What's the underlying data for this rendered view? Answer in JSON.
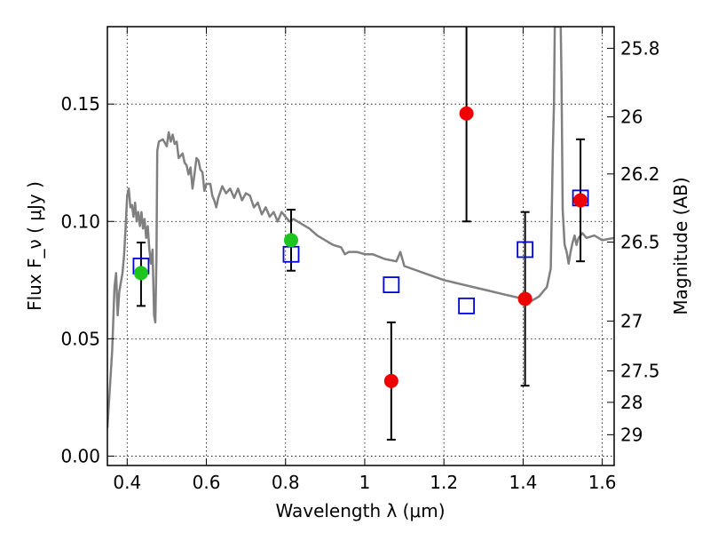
{
  "chart_data": {
    "type": "scatter",
    "xlabel": "Wavelength λ (μm)",
    "ylabel": "Flux F_ν ( μJy )",
    "ylabel_right": "Magnitude (AB)",
    "xlim": [
      0.35,
      1.63
    ],
    "ylim": [
      -0.004,
      0.183
    ],
    "grid": true,
    "x_ticks": [
      0.4,
      0.6,
      0.8,
      1.0,
      1.2,
      1.4,
      1.6
    ],
    "x_tick_labels": [
      "0.4",
      "0.6",
      "0.8",
      "1",
      "1.2",
      "1.4",
      "1.6"
    ],
    "y_ticks": [
      0.0,
      0.05,
      0.1,
      0.15
    ],
    "y_tick_labels": [
      "0.00",
      "0.05",
      "0.10",
      "0.15"
    ],
    "right_ticks": [
      {
        "label": "25.8",
        "value": 25.8
      },
      {
        "label": "26",
        "value": 26.0
      },
      {
        "label": "26.2",
        "value": 26.2
      },
      {
        "label": "26.5",
        "value": 26.5
      },
      {
        "label": "27",
        "value": 27.0
      },
      {
        "label": "27.5",
        "value": 27.5
      },
      {
        "label": "28",
        "value": 28.0
      },
      {
        "label": "29",
        "value": 29.0
      }
    ],
    "series": [
      {
        "kind": "line",
        "color": "#808080",
        "points": [
          [
            0.35,
            0.012
          ],
          [
            0.362,
            0.045
          ],
          [
            0.368,
            0.072
          ],
          [
            0.372,
            0.078
          ],
          [
            0.376,
            0.06
          ],
          [
            0.38,
            0.07
          ],
          [
            0.384,
            0.074
          ],
          [
            0.388,
            0.078
          ],
          [
            0.392,
            0.085
          ],
          [
            0.396,
            0.097
          ],
          [
            0.4,
            0.111
          ],
          [
            0.404,
            0.114
          ],
          [
            0.408,
            0.106
          ],
          [
            0.412,
            0.107
          ],
          [
            0.416,
            0.102
          ],
          [
            0.42,
            0.108
          ],
          [
            0.424,
            0.1
          ],
          [
            0.428,
            0.104
          ],
          [
            0.432,
            0.098
          ],
          [
            0.436,
            0.104
          ],
          [
            0.44,
            0.097
          ],
          [
            0.444,
            0.101
          ],
          [
            0.448,
            0.093
          ],
          [
            0.452,
            0.098
          ],
          [
            0.456,
            0.088
          ],
          [
            0.46,
            0.082
          ],
          [
            0.464,
            0.088
          ],
          [
            0.468,
            0.06
          ],
          [
            0.471,
            0.057
          ],
          [
            0.474,
            0.085
          ],
          [
            0.476,
            0.13
          ],
          [
            0.48,
            0.134
          ],
          [
            0.49,
            0.135
          ],
          [
            0.5,
            0.132
          ],
          [
            0.505,
            0.138
          ],
          [
            0.51,
            0.134
          ],
          [
            0.515,
            0.137
          ],
          [
            0.52,
            0.133
          ],
          [
            0.525,
            0.134
          ],
          [
            0.53,
            0.127
          ],
          [
            0.54,
            0.129
          ],
          [
            0.545,
            0.125
          ],
          [
            0.55,
            0.124
          ],
          [
            0.555,
            0.12
          ],
          [
            0.56,
            0.123
          ],
          [
            0.565,
            0.114
          ],
          [
            0.57,
            0.12
          ],
          [
            0.575,
            0.127
          ],
          [
            0.58,
            0.126
          ],
          [
            0.585,
            0.122
          ],
          [
            0.59,
            0.121
          ],
          [
            0.595,
            0.113
          ],
          [
            0.6,
            0.116
          ],
          [
            0.61,
            0.116
          ],
          [
            0.615,
            0.111
          ],
          [
            0.62,
            0.109
          ],
          [
            0.625,
            0.106
          ],
          [
            0.63,
            0.11
          ],
          [
            0.64,
            0.115
          ],
          [
            0.65,
            0.112
          ],
          [
            0.66,
            0.114
          ],
          [
            0.67,
            0.11
          ],
          [
            0.68,
            0.114
          ],
          [
            0.69,
            0.109
          ],
          [
            0.7,
            0.112
          ],
          [
            0.71,
            0.111
          ],
          [
            0.72,
            0.106
          ],
          [
            0.73,
            0.108
          ],
          [
            0.74,
            0.103
          ],
          [
            0.75,
            0.106
          ],
          [
            0.76,
            0.102
          ],
          [
            0.77,
            0.104
          ],
          [
            0.78,
            0.1
          ],
          [
            0.79,
            0.104
          ],
          [
            0.8,
            0.102
          ],
          [
            0.81,
            0.1
          ],
          [
            0.82,
            0.101
          ],
          [
            0.84,
            0.099
          ],
          [
            0.86,
            0.097
          ],
          [
            0.88,
            0.094
          ],
          [
            0.9,
            0.092
          ],
          [
            0.92,
            0.09
          ],
          [
            0.94,
            0.089
          ],
          [
            0.95,
            0.086
          ],
          [
            0.96,
            0.087
          ],
          [
            0.98,
            0.087
          ],
          [
            1.0,
            0.086
          ],
          [
            1.02,
            0.086
          ],
          [
            1.05,
            0.084
          ],
          [
            1.08,
            0.083
          ],
          [
            1.09,
            0.087
          ],
          [
            1.1,
            0.081
          ],
          [
            1.15,
            0.078
          ],
          [
            1.2,
            0.075
          ],
          [
            1.25,
            0.073
          ],
          [
            1.3,
            0.071
          ],
          [
            1.35,
            0.069
          ],
          [
            1.4,
            0.067
          ],
          [
            1.42,
            0.066
          ],
          [
            1.44,
            0.068
          ],
          [
            1.46,
            0.072
          ],
          [
            1.47,
            0.08
          ],
          [
            1.475,
            0.13
          ],
          [
            1.478,
            0.15
          ],
          [
            1.48,
            0.183
          ],
          [
            1.495,
            0.183
          ],
          [
            1.497,
            0.16
          ],
          [
            1.5,
            0.105
          ],
          [
            1.505,
            0.09
          ],
          [
            1.51,
            0.087
          ],
          [
            1.515,
            0.082
          ],
          [
            1.52,
            0.087
          ],
          [
            1.525,
            0.091
          ],
          [
            1.53,
            0.094
          ],
          [
            1.535,
            0.09
          ],
          [
            1.54,
            0.093
          ],
          [
            1.55,
            0.095
          ],
          [
            1.56,
            0.093
          ],
          [
            1.58,
            0.094
          ],
          [
            1.6,
            0.092
          ],
          [
            1.63,
            0.093
          ]
        ]
      },
      {
        "kind": "open-square",
        "color": "#0000dd",
        "points": [
          [
            0.435,
            0.081
          ],
          [
            0.814,
            0.086
          ],
          [
            1.067,
            0.073
          ],
          [
            1.257,
            0.064
          ],
          [
            1.405,
            0.088
          ],
          [
            1.545,
            0.11
          ]
        ]
      },
      {
        "kind": "filled-circle",
        "color": "#1ec51e",
        "points": [
          {
            "x": 0.435,
            "y": 0.078,
            "err_lo": 0.014,
            "err_hi": 0.013
          },
          {
            "x": 0.814,
            "y": 0.092,
            "err_lo": 0.013,
            "err_hi": 0.013
          }
        ]
      },
      {
        "kind": "filled-circle",
        "color": "#ee0000",
        "points": [
          {
            "x": 1.067,
            "y": 0.032,
            "err_lo": 0.025,
            "err_hi": 0.025
          },
          {
            "x": 1.257,
            "y": 0.146,
            "err_lo": 0.046,
            "err_hi": 0.046
          },
          {
            "x": 1.405,
            "y": 0.067,
            "err_lo": 0.037,
            "err_hi": 0.037
          },
          {
            "x": 1.545,
            "y": 0.109,
            "err_lo": 0.026,
            "err_hi": 0.026
          }
        ]
      }
    ]
  }
}
